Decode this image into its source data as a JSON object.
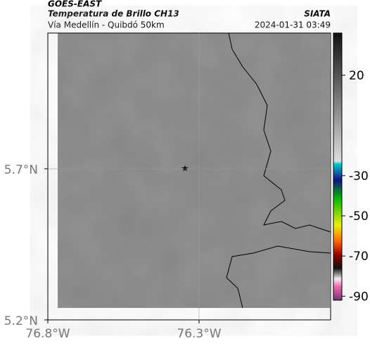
{
  "header": {
    "source": "GOES-EAST",
    "title": "Temperatura de Brillo CH13",
    "brand": "SIATA",
    "route": "Vía Medellín - Quibdó 50km",
    "timestamp": "2024-01-31 03:49"
  },
  "map": {
    "xlim": [
      -76.8,
      -75.865
    ],
    "ylim": [
      5.2,
      6.149
    ],
    "xticks": [
      {
        "value": -76.8,
        "label": "76.8°W"
      },
      {
        "value": -76.3,
        "label": "76.3°W"
      }
    ],
    "yticks": [
      {
        "value": 5.7,
        "label": "5.7°N"
      },
      {
        "value": 5.2,
        "label": "5.2°N"
      }
    ]
  },
  "colorbar": {
    "lim": [
      41,
      -92
    ],
    "ticks": [
      20,
      -30,
      -50,
      -70,
      -90
    ]
  }
}
